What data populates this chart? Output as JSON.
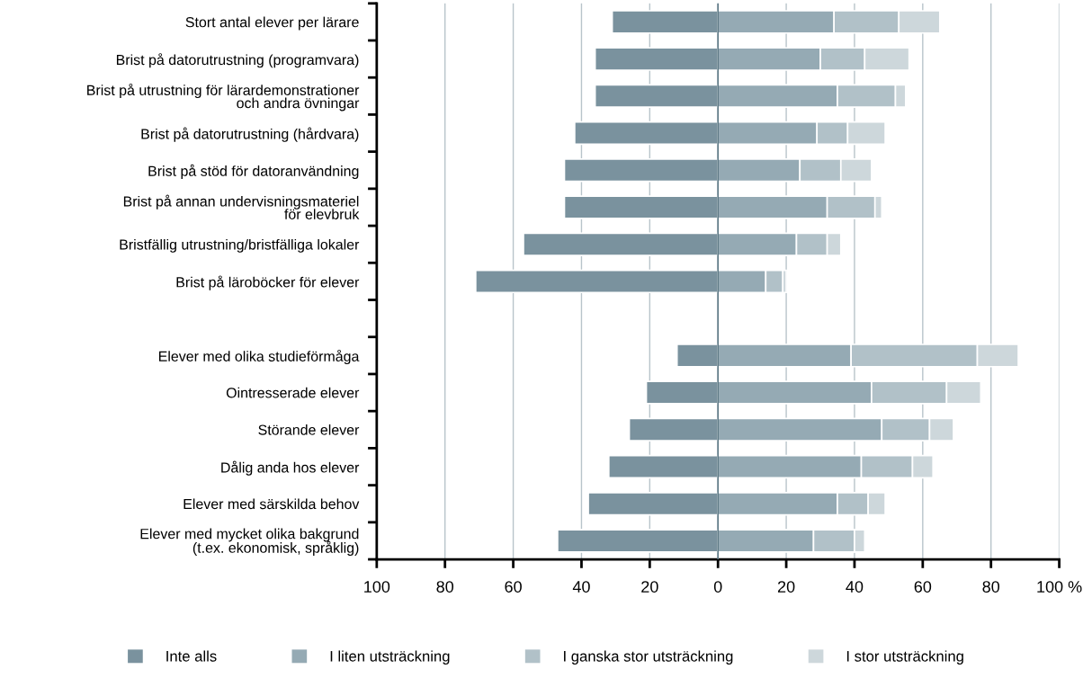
{
  "chart_data": {
    "type": "bar",
    "orientation": "horizontal",
    "stacked": true,
    "categories": [
      "Stort antal elever per lärare",
      "Brist på datorutrustning (programvara)",
      "Brist på utrustning för lärardemonstrationer\noch andra övningar",
      "Brist på datorutrustning (hårdvara)",
      "Brist på stöd för datoranvändning",
      "Brist på annan undervisningsmateriel\nför elevbruk",
      "Bristfällig utrustning/bristfälliga lokaler",
      "Brist på läroböcker för elever",
      null,
      "Elever med olika studieförmåga",
      "Ointresserade elever",
      "Störande elever",
      "Dålig anda hos elever",
      "Elever med särskilda behov",
      "Elever med mycket olika bakgrund\n(t.ex. ekonomisk, språklig)"
    ],
    "series": [
      {
        "name": "Inte alls",
        "color": "#7a929e",
        "values": [
          -31,
          -36,
          -36,
          -42,
          -45,
          -45,
          -57,
          -71,
          null,
          -12,
          -21,
          -26,
          -32,
          -38,
          -47
        ]
      },
      {
        "name": "I liten utsträckning",
        "color": "#95aab4",
        "values": [
          34,
          30,
          35,
          29,
          24,
          32,
          23,
          14,
          null,
          39,
          45,
          48,
          42,
          35,
          28
        ]
      },
      {
        "name": "I ganska stor utsträckning",
        "color": "#b1c1c8",
        "values": [
          19,
          13,
          17,
          9,
          12,
          14,
          9,
          5,
          null,
          37,
          22,
          14,
          15,
          9,
          12
        ]
      },
      {
        "name": "I stor utsträckning",
        "color": "#cdd7db",
        "values": [
          12,
          13,
          3,
          11,
          9,
          2,
          4,
          1,
          null,
          12,
          10,
          7,
          6,
          5,
          3
        ]
      }
    ],
    "xlim": [
      -100,
      100
    ],
    "xticks": [
      {
        "value": -100,
        "label": "100"
      },
      {
        "value": -80,
        "label": "80"
      },
      {
        "value": -60,
        "label": "60"
      },
      {
        "value": -40,
        "label": "40"
      },
      {
        "value": -20,
        "label": "20"
      },
      0,
      20,
      40,
      60,
      80,
      {
        "value": 100,
        "label": "100 %"
      }
    ],
    "ref_lines": [
      {
        "axis": "x",
        "value": 0,
        "color": "#5f7a86"
      }
    ],
    "grid": "x",
    "legend": "bottom"
  }
}
